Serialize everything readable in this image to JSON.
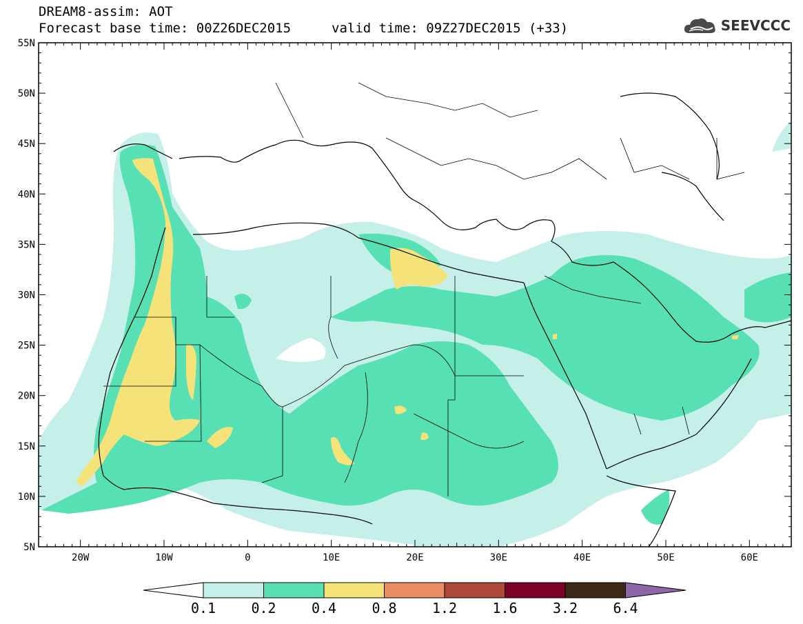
{
  "title": {
    "line1": "DREAM8-assim: AOT",
    "base": "Forecast base time: 00Z26DEC2015",
    "valid": "valid time: 09Z27DEC2015 (+33)"
  },
  "logo": {
    "text": "SEEVCCC",
    "icon": "cloud-icon"
  },
  "map": {
    "lon_range": [
      -25,
      65
    ],
    "lat_range": [
      5,
      55
    ],
    "lon_ticks": [
      {
        "v": -20,
        "label": "20W"
      },
      {
        "v": -10,
        "label": "10W"
      },
      {
        "v": 0,
        "label": "0"
      },
      {
        "v": 10,
        "label": "10E"
      },
      {
        "v": 20,
        "label": "20E"
      },
      {
        "v": 30,
        "label": "30E"
      },
      {
        "v": 40,
        "label": "40E"
      },
      {
        "v": 50,
        "label": "50E"
      },
      {
        "v": 60,
        "label": "60E"
      }
    ],
    "lat_ticks": [
      {
        "v": 55,
        "label": "55N"
      },
      {
        "v": 50,
        "label": "50N"
      },
      {
        "v": 45,
        "label": "45N"
      },
      {
        "v": 40,
        "label": "40N"
      },
      {
        "v": 35,
        "label": "35N"
      },
      {
        "v": 30,
        "label": "30N"
      },
      {
        "v": 25,
        "label": "25N"
      },
      {
        "v": 20,
        "label": "20N"
      },
      {
        "v": 15,
        "label": "15N"
      },
      {
        "v": 10,
        "label": "10N"
      },
      {
        "v": 5,
        "label": "5N"
      }
    ]
  },
  "colorbar": {
    "labels": [
      "0.1",
      "0.2",
      "0.4",
      "0.8",
      "1.2",
      "1.6",
      "3.2",
      "6.4"
    ],
    "colors": [
      "#ffffff",
      "#c5f0ea",
      "#57e0b4",
      "#f5e37a",
      "#e98e64",
      "#ad4a3c",
      "#7d0026",
      "#3d2818",
      "#8e67a8"
    ]
  }
}
